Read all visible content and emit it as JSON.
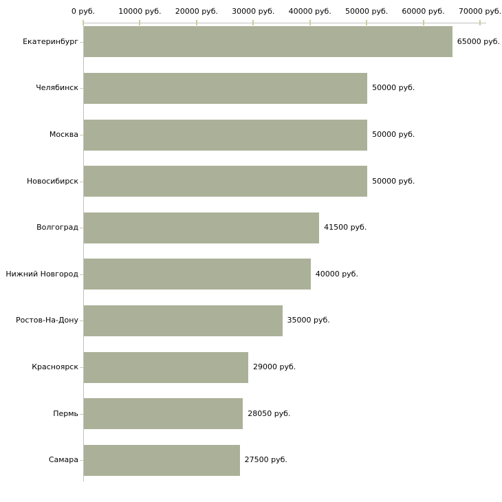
{
  "chart_data": {
    "type": "bar",
    "orientation": "horizontal",
    "title": "",
    "xlabel": "",
    "ylabel": "",
    "categories": [
      "Екатеринбург",
      "Челябинск",
      "Москва",
      "Новосибирск",
      "Волгоград",
      "Нижний Новгород",
      "Ростов-На-Дону",
      "Красноярск",
      "Пермь",
      "Самара"
    ],
    "values": [
      65000,
      50000,
      50000,
      50000,
      41500,
      40000,
      35000,
      29000,
      28050,
      27500
    ],
    "value_labels": [
      "65000 руб.",
      "50000 руб.",
      "50000 руб.",
      "50000 руб.",
      "41500 руб.",
      "40000 руб.",
      "35000 руб.",
      "29000 руб.",
      "28050 руб.",
      "27500 руб."
    ],
    "x_axis": {
      "position": "top",
      "min": 0,
      "max": 70000,
      "ticks": [
        0,
        10000,
        20000,
        30000,
        40000,
        50000,
        60000,
        70000
      ],
      "tick_labels": [
        "0 руб.",
        "10000 руб.",
        "20000 руб.",
        "30000 руб.",
        "40000 руб.",
        "50000 руб.",
        "60000 руб.",
        "70000 руб."
      ]
    },
    "grid": false,
    "legend": false,
    "colors": {
      "bar": "#abb198",
      "axis_line": "#c0c0c0",
      "tick_mark": "#cccc99",
      "category_tick": "#c9c9ae",
      "text": "#000000",
      "background": "#ffffff"
    }
  }
}
